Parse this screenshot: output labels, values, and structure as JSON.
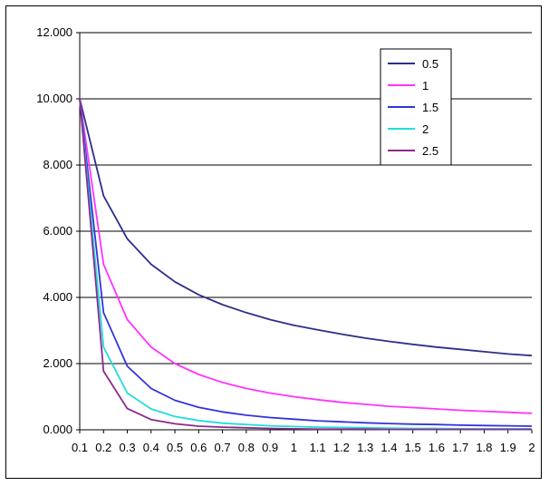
{
  "chart_data": {
    "type": "line",
    "title": "",
    "xlabel": "",
    "ylabel": "",
    "ylim": [
      0,
      12
    ],
    "grid": true,
    "legend_position": "top-right",
    "y_ticks": [
      "0.000",
      "2.000",
      "4.000",
      "6.000",
      "8.000",
      "10.000",
      "12.000"
    ],
    "x": [
      0.1,
      0.2,
      0.3,
      0.4,
      0.5,
      0.6,
      0.7,
      0.8,
      0.9,
      1,
      1.1,
      1.2,
      1.3,
      1.4,
      1.5,
      1.6,
      1.7,
      1.8,
      1.9,
      2
    ],
    "x_tick_labels": [
      "0.1",
      "0.2",
      "0.3",
      "0.4",
      "0.5",
      "0.6",
      "0.7",
      "0.8",
      "0.9",
      "1",
      "1.1",
      "1.2",
      "1.3",
      "1.4",
      "1.5",
      "1.6",
      "1.7",
      "1.8",
      "1.9",
      "2"
    ],
    "series": [
      {
        "name": "0.5",
        "color": "#2e2e8c",
        "values": [
          10.0,
          7.07,
          5.77,
          5.0,
          4.47,
          4.08,
          3.78,
          3.54,
          3.33,
          3.16,
          3.02,
          2.89,
          2.77,
          2.67,
          2.58,
          2.5,
          2.43,
          2.36,
          2.29,
          2.24
        ]
      },
      {
        "name": "1",
        "color": "#ff33ff",
        "values": [
          10.0,
          5.0,
          3.33,
          2.5,
          2.0,
          1.67,
          1.43,
          1.25,
          1.11,
          1.0,
          0.91,
          0.83,
          0.77,
          0.71,
          0.67,
          0.63,
          0.59,
          0.56,
          0.53,
          0.5
        ]
      },
      {
        "name": "1.5",
        "color": "#3333dd",
        "values": [
          10.0,
          3.54,
          1.92,
          1.25,
          0.89,
          0.68,
          0.54,
          0.44,
          0.37,
          0.32,
          0.27,
          0.24,
          0.21,
          0.19,
          0.17,
          0.16,
          0.14,
          0.13,
          0.12,
          0.11
        ]
      },
      {
        "name": "2",
        "color": "#22dddd",
        "values": [
          10.0,
          2.5,
          1.11,
          0.63,
          0.4,
          0.28,
          0.2,
          0.16,
          0.12,
          0.1,
          0.08,
          0.07,
          0.06,
          0.05,
          0.04,
          0.04,
          0.03,
          0.03,
          0.03,
          0.03
        ]
      },
      {
        "name": "2.5",
        "color": "#8b2a8b",
        "values": [
          10.0,
          1.77,
          0.64,
          0.31,
          0.18,
          0.11,
          0.08,
          0.06,
          0.04,
          0.03,
          0.02,
          0.02,
          0.02,
          0.01,
          0.01,
          0.01,
          0.01,
          0.01,
          0.01,
          0.01
        ]
      }
    ]
  }
}
